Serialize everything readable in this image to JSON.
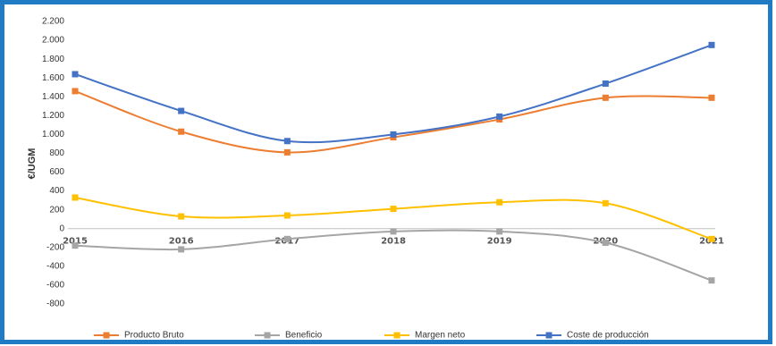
{
  "chart_data": {
    "type": "line",
    "y_label": "€/UGM",
    "smooth": true,
    "categories": [
      "2015",
      "2016",
      "2017",
      "2018",
      "2019",
      "2020",
      "2021"
    ],
    "series": [
      {
        "name": "Producto Bruto",
        "color": "#ed7d31",
        "values": [
          1460,
          1030,
          810,
          970,
          1160,
          1390,
          1390
        ]
      },
      {
        "name": "Beneficio",
        "color": "#a5a5a5",
        "values": [
          -180,
          -220,
          -110,
          -30,
          -30,
          -150,
          -550
        ]
      },
      {
        "name": "Margen neto",
        "color": "#ffc000",
        "values": [
          330,
          130,
          140,
          210,
          280,
          270,
          -110
        ]
      },
      {
        "name": "Coste de producción",
        "color": "#4472c4",
        "values": [
          1640,
          1250,
          930,
          1000,
          1190,
          1540,
          1950
        ]
      }
    ],
    "ylim": [
      -800,
      2200
    ],
    "yticks": [
      {
        "value": 2200,
        "label": "2.200"
      },
      {
        "value": 2000,
        "label": "2.000"
      },
      {
        "value": 1800,
        "label": "1.800"
      },
      {
        "value": 1600,
        "label": "1.600"
      },
      {
        "value": 1400,
        "label": "1.400"
      },
      {
        "value": 1200,
        "label": "1.200"
      },
      {
        "value": 1000,
        "label": "1.000"
      },
      800,
      600,
      400,
      200,
      0,
      -200,
      -400,
      -600,
      -800
    ],
    "grid": false,
    "legend": "bottom"
  }
}
